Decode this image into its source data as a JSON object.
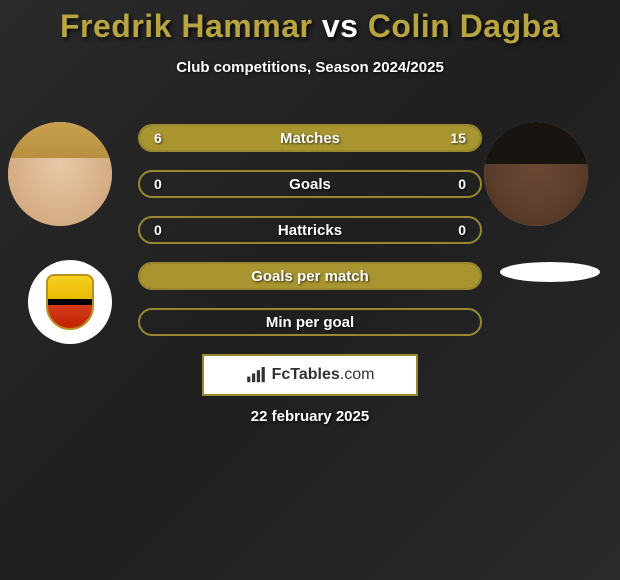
{
  "title": {
    "player1": "Fredrik Hammar",
    "vs": "vs",
    "player2": "Colin Dagba"
  },
  "subtitle": "Club competitions, Season 2024/2025",
  "colors": {
    "accent": "#a89530",
    "border": "#9a8830",
    "text": "#ffffff",
    "title_accent": "#b8a540"
  },
  "stats": [
    {
      "label": "Matches",
      "left_val": "6",
      "right_val": "15",
      "left_pct": 28.6,
      "right_pct": 71.4
    },
    {
      "label": "Goals",
      "left_val": "0",
      "right_val": "0",
      "left_pct": 0,
      "right_pct": 0
    },
    {
      "label": "Hattricks",
      "left_val": "0",
      "right_val": "0",
      "left_pct": 0,
      "right_pct": 0
    },
    {
      "label": "Goals per match",
      "left_val": "",
      "right_val": "",
      "left_pct": 100,
      "right_pct": 0
    },
    {
      "label": "Min per goal",
      "left_val": "",
      "right_val": "",
      "left_pct": 0,
      "right_pct": 0
    }
  ],
  "footer": {
    "brand_bold": "FcTables",
    "brand_suffix": ".com"
  },
  "date": "22 february 2025"
}
